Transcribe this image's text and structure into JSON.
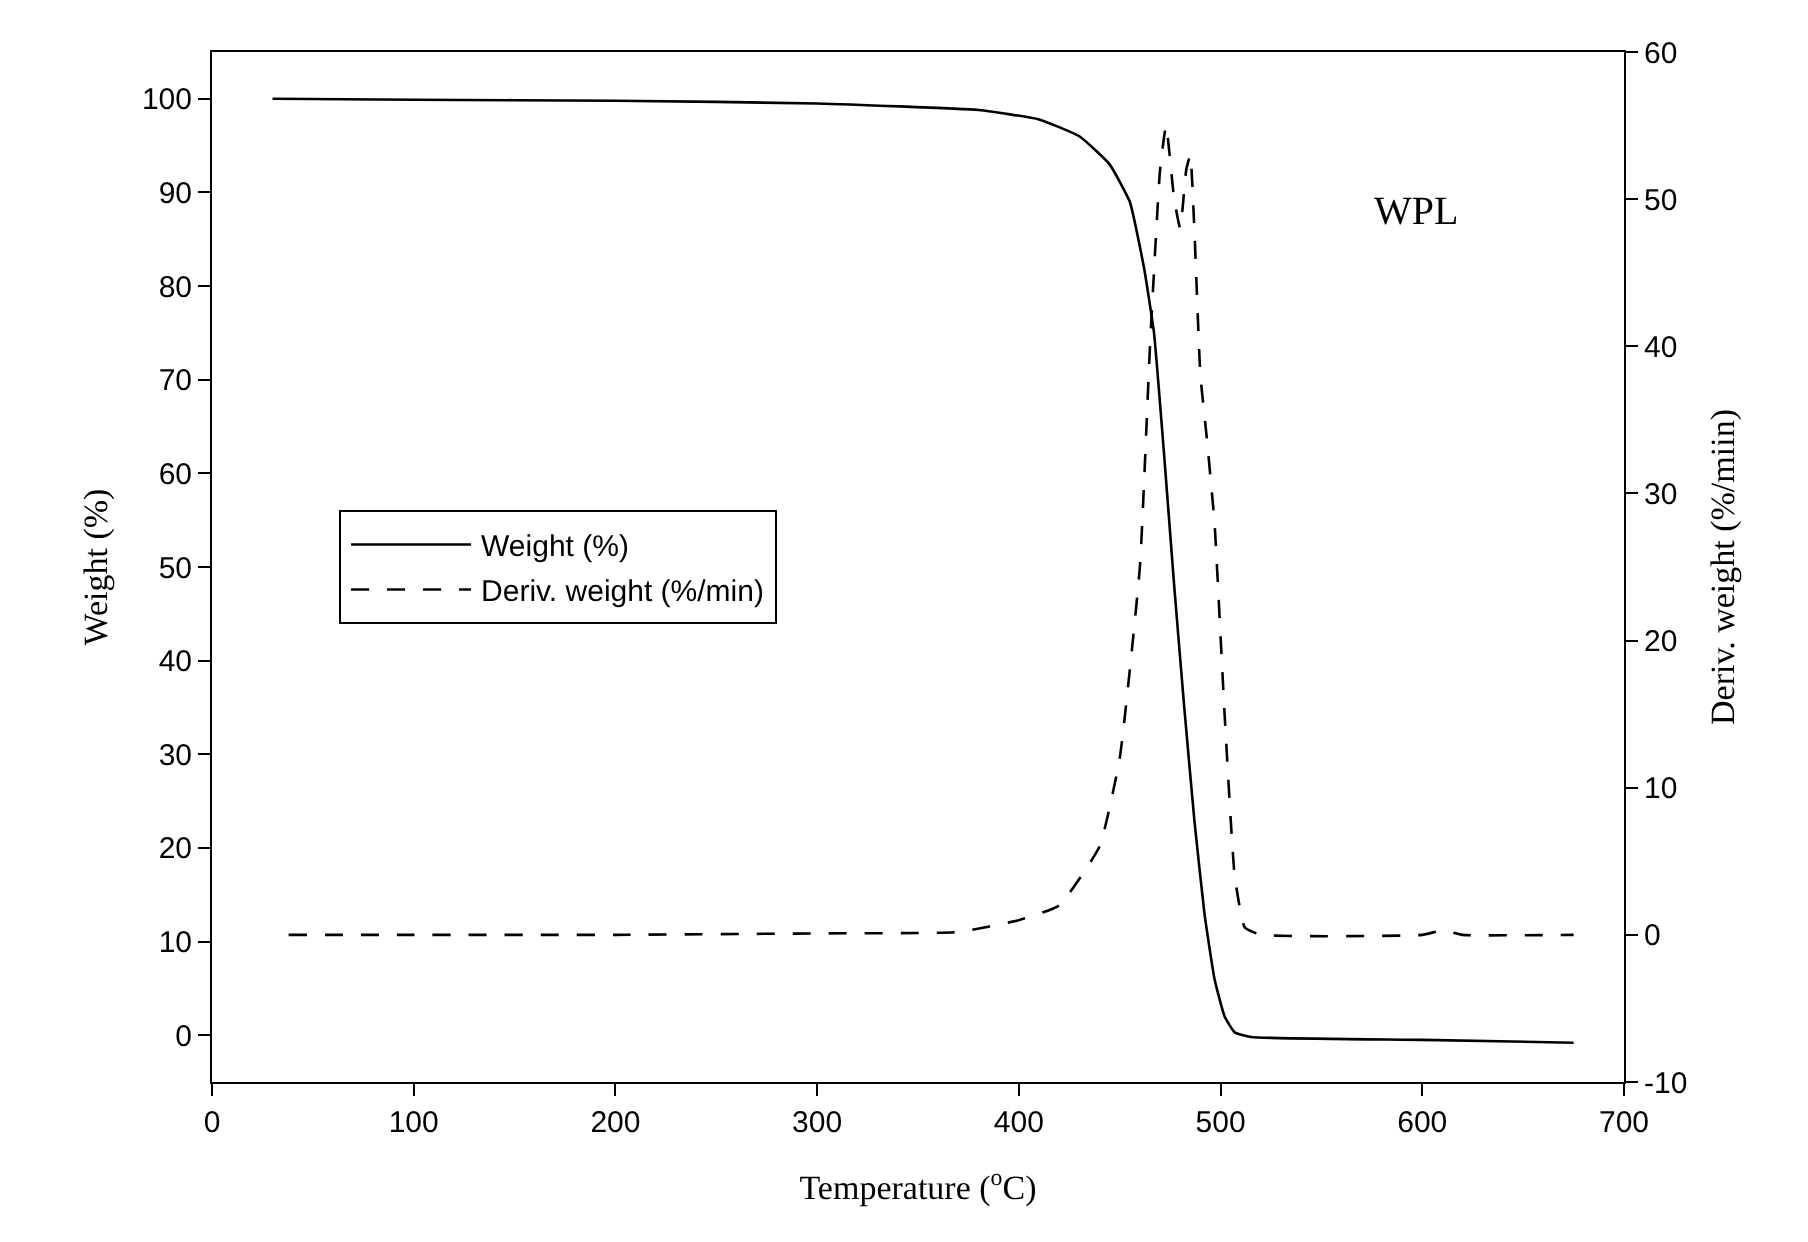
{
  "chart_data": {
    "type": "line",
    "xlabel": "Temperature ($^{o}$C)",
    "ylabel": "Weight (%)",
    "y2label": "Deriv. weight (%/miin)",
    "xlim": [
      0,
      700
    ],
    "xticks": [
      0,
      100,
      200,
      300,
      400,
      500,
      600,
      700
    ],
    "ylim": [
      -5,
      105
    ],
    "yticks": [
      0,
      10,
      20,
      30,
      40,
      50,
      60,
      70,
      80,
      90,
      100
    ],
    "y2lim": [
      -10,
      60
    ],
    "y2ticks": [
      -10,
      0,
      10,
      20,
      30,
      40,
      50,
      60
    ],
    "grid": false,
    "legend": "left",
    "marker": "none",
    "annotations": [
      "WPL"
    ],
    "series": [
      {
        "name": "Weight (%)",
        "color": "#000000",
        "line_style": "solid",
        "x": [
          30,
          100,
          200,
          300,
          380,
          410,
          430,
          445,
          455,
          462,
          467,
          472,
          477,
          482,
          487,
          492,
          497,
          502,
          507,
          515,
          600,
          675
        ],
        "values": [
          100,
          99.9,
          99.8,
          99.5,
          98.8,
          97.8,
          96,
          93,
          89,
          82,
          75,
          62,
          48,
          35,
          23,
          13,
          6,
          2,
          0.3,
          -0.2,
          -0.5,
          -0.8
        ]
      },
      {
        "name": "Deriv. weight (%/min)",
        "color": "#000000",
        "line_style": "dashed",
        "axis": "y2",
        "x": [
          38,
          100,
          200,
          300,
          370,
          400,
          420,
          440,
          450,
          460,
          465,
          470,
          473,
          477,
          480,
          483,
          485,
          487,
          490,
          493,
          497,
          502,
          507,
          512,
          520,
          600,
          610,
          620,
          675
        ],
        "values": [
          0,
          0,
          0,
          0.1,
          0.2,
          1,
          2,
          6,
          12,
          25,
          40,
          52,
          55,
          50,
          48,
          52,
          53,
          48,
          38,
          34,
          28,
          15,
          4,
          0.5,
          0,
          0,
          0.3,
          0,
          0
        ]
      }
    ]
  }
}
